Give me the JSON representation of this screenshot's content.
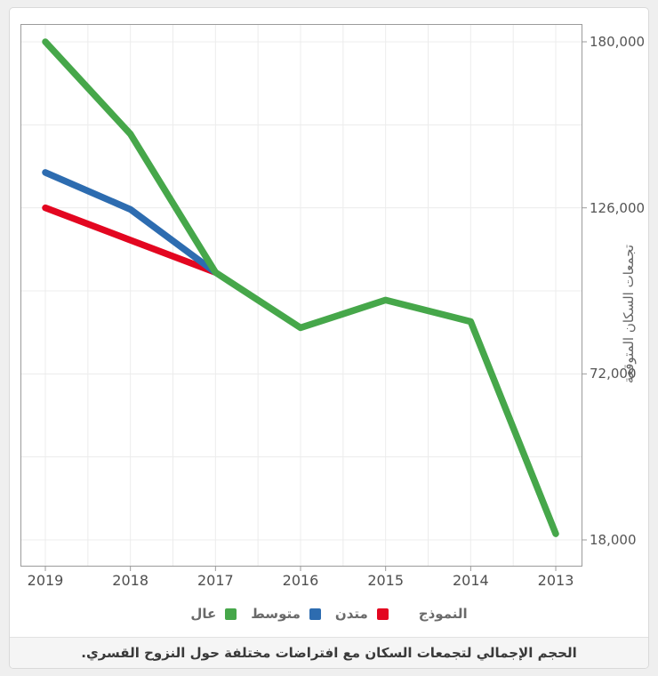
{
  "chart_data": {
    "type": "line",
    "x_categories": [
      "2019",
      "2018",
      "2017",
      "2016",
      "2015",
      "2014",
      "2013"
    ],
    "x_axis_reversed": true,
    "ylabel": "تجمعات السكان المتوقعة",
    "y_axis_side": "right",
    "ylim": [
      9000,
      186000
    ],
    "grid": true,
    "y_ticks": [
      {
        "label": "180,000",
        "value": 180000
      },
      {
        "label": "126,000",
        "value": 126000
      },
      {
        "label": "72,000",
        "value": 72000
      },
      {
        "label": "18,000",
        "value": 18000
      }
    ],
    "legend_position": "bottom",
    "legend_title": "النموذج",
    "legend_items": [
      {
        "label": "متدن",
        "color": "#e30620"
      },
      {
        "label": "متوسط",
        "color": "#2d6cb0"
      },
      {
        "label": "عال",
        "color": "#46a74a"
      }
    ],
    "series": [
      {
        "name": "متدن",
        "color": "#e30620",
        "values": [
          126000,
          115500,
          105000,
          null,
          null,
          null,
          null
        ]
      },
      {
        "name": "متوسط",
        "color": "#2d6cb0",
        "values": [
          137500,
          125500,
          105000,
          null,
          null,
          null,
          null
        ]
      },
      {
        "name": "عال",
        "color": "#46a74a",
        "values": [
          180000,
          150000,
          105000,
          87000,
          96000,
          89000,
          20000
        ]
      }
    ],
    "caption": "الحجم الإجمالي لتجمعات السكان مع افتراضات مختلفة حول النزوح القسري.",
    "colors": {
      "grid": "#ececec",
      "axis": "#9b9b9b",
      "tick_text": "#555555",
      "caption_bg": "#f5f5f5"
    }
  }
}
